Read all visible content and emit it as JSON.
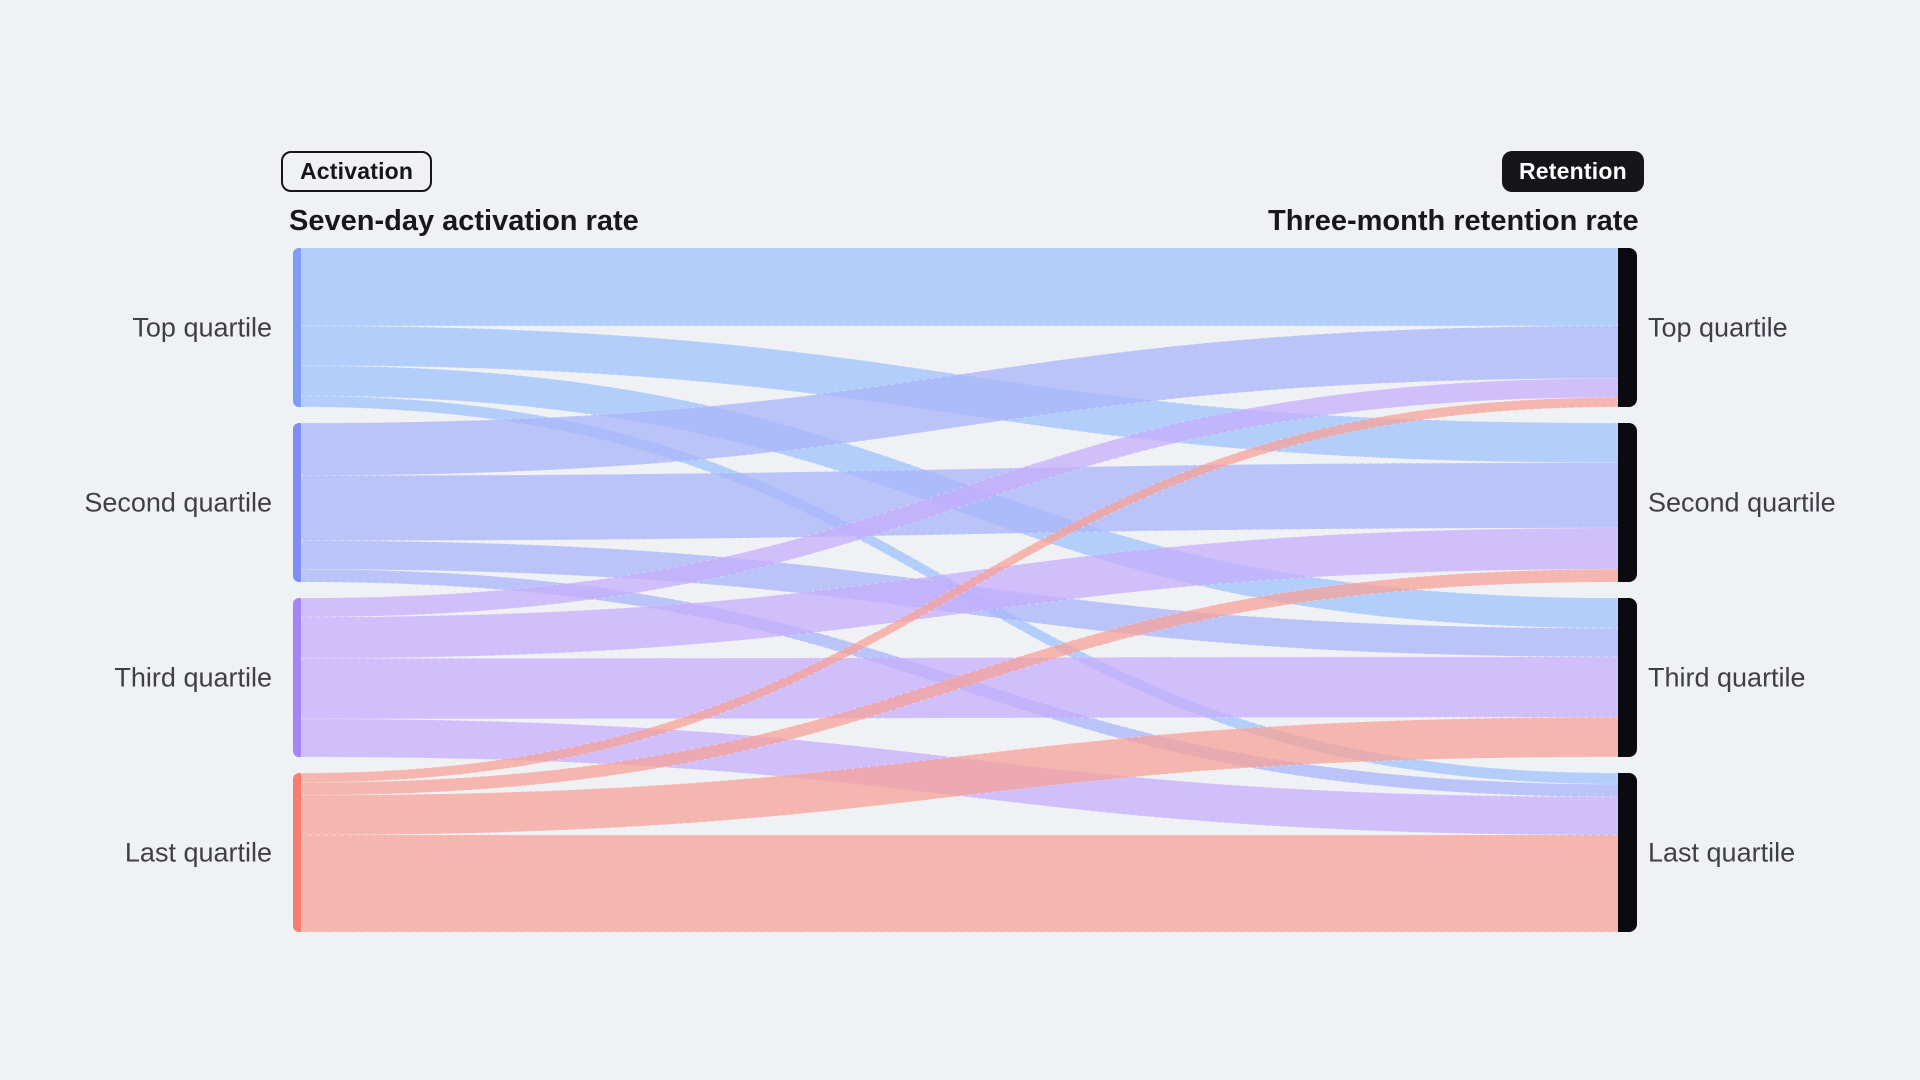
{
  "chart_data": {
    "type": "sankey",
    "left_axis": {
      "badge": "Activation",
      "title": "Seven-day activation rate"
    },
    "right_axis": {
      "badge": "Retention",
      "title": "Three-month retention rate"
    },
    "left_nodes": [
      "Top quartile",
      "Second quartile",
      "Third quartile",
      "Last quartile"
    ],
    "right_nodes": [
      "Top quartile",
      "Second quartile",
      "Third quartile",
      "Last quartile"
    ],
    "value_note": "percent of each activation quartile, estimated from ribbon heights",
    "flows": [
      {
        "from": "Top quartile",
        "to": "Top quartile",
        "value": 49
      },
      {
        "from": "Top quartile",
        "to": "Second quartile",
        "value": 25
      },
      {
        "from": "Top quartile",
        "to": "Third quartile",
        "value": 19
      },
      {
        "from": "Top quartile",
        "to": "Last quartile",
        "value": 7
      },
      {
        "from": "Second quartile",
        "to": "Top quartile",
        "value": 33
      },
      {
        "from": "Second quartile",
        "to": "Second quartile",
        "value": 41
      },
      {
        "from": "Second quartile",
        "to": "Third quartile",
        "value": 18
      },
      {
        "from": "Second quartile",
        "to": "Last quartile",
        "value": 8
      },
      {
        "from": "Third quartile",
        "to": "Top quartile",
        "value": 12
      },
      {
        "from": "Third quartile",
        "to": "Second quartile",
        "value": 26
      },
      {
        "from": "Third quartile",
        "to": "Third quartile",
        "value": 38
      },
      {
        "from": "Third quartile",
        "to": "Last quartile",
        "value": 24
      },
      {
        "from": "Last quartile",
        "to": "Top quartile",
        "value": 6
      },
      {
        "from": "Last quartile",
        "to": "Second quartile",
        "value": 8
      },
      {
        "from": "Last quartile",
        "to": "Third quartile",
        "value": 25
      },
      {
        "from": "Last quartile",
        "to": "Last quartile",
        "value": 61
      }
    ],
    "colors": {
      "background": "#f0f1f5",
      "title_text": "#17171c",
      "label_text": "#3f3f46",
      "badge_ink": "#15151a",
      "badge_solid_text": "#ffffff",
      "left_node_bars": [
        "#7f9cf7",
        "#7f8ef6",
        "#a884f8",
        "#f87e71"
      ],
      "right_node_bar": "#0b0b0f",
      "flow_colors": [
        "#9fc2fb",
        "#aab4fa",
        "#c6aefb",
        "#f7a298"
      ]
    },
    "layout_hints": {
      "left_bar_rounded": "left-corners",
      "right_bar_rounded": "right-corners",
      "flow_separator": "white dashed hairline"
    }
  }
}
